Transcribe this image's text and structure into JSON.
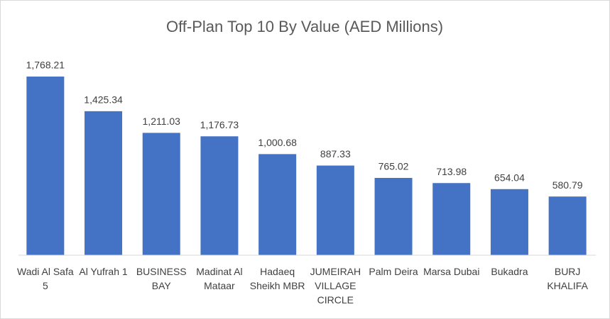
{
  "chart_data": {
    "type": "bar",
    "title": "Off-Plan Top 10 By Value (AED Millions)",
    "categories": [
      "Wadi Al Safa 5",
      "Al Yufrah 1",
      "BUSINESS BAY",
      "Madinat Al Mataar",
      "Hadaeq Sheikh MBR",
      "JUMEIRAH VILLAGE CIRCLE",
      "Palm Deira",
      "Marsa Dubai",
      "Bukadra",
      "BURJ KHALIFA"
    ],
    "values": [
      1768.21,
      1425.34,
      1211.03,
      1176.73,
      1000.68,
      887.33,
      765.02,
      713.98,
      654.04,
      580.79
    ],
    "value_labels": [
      "1,768.21",
      "1,425.34",
      "1,211.03",
      "1,176.73",
      "1,000.68",
      "887.33",
      "765.02",
      "713.98",
      "654.04",
      "580.79"
    ],
    "color": "#4472c4"
  }
}
